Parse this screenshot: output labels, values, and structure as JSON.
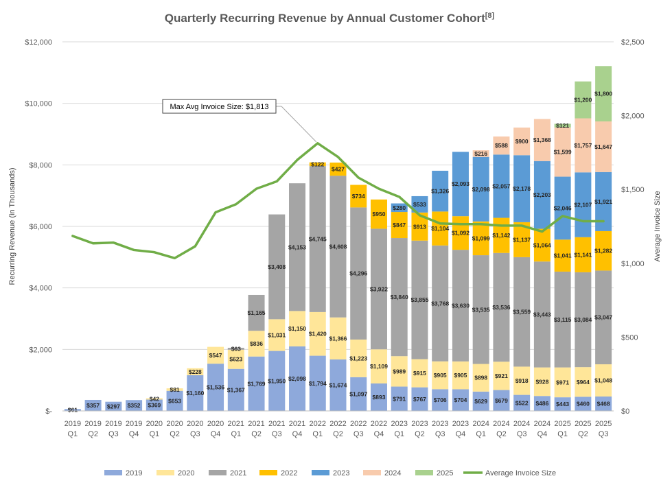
{
  "chart_data": {
    "type": "bar",
    "stacked": true,
    "title": "Quarterly Recurring Revenue by Annual Customer Cohort",
    "title_ref": "[8]",
    "ylabel": "Recurring Revenue (in Thousands)",
    "y2label": "Average Invoice Size",
    "ylim": [
      0,
      12000
    ],
    "y2lim": [
      0,
      2500
    ],
    "y_ticks": [
      "$-",
      "$2,000",
      "$4,000",
      "$6,000",
      "$8,000",
      "$10,000",
      "$12,000"
    ],
    "y2_ticks": [
      "$0",
      "$500",
      "$1,000",
      "$1,500",
      "$2,000",
      "$2,500"
    ],
    "grid": true,
    "legend_position": "bottom",
    "categories": [
      [
        "2019",
        "Q1"
      ],
      [
        "2019",
        "Q2"
      ],
      [
        "2019",
        "Q3"
      ],
      [
        "2019",
        "Q4"
      ],
      [
        "2020",
        "Q1"
      ],
      [
        "2020",
        "Q2"
      ],
      [
        "2020",
        "Q3"
      ],
      [
        "2020",
        "Q4"
      ],
      [
        "2021",
        "Q1"
      ],
      [
        "2021",
        "Q2"
      ],
      [
        "2021",
        "Q3"
      ],
      [
        "2021",
        "Q4"
      ],
      [
        "2022",
        "Q1"
      ],
      [
        "2022",
        "Q2"
      ],
      [
        "2022",
        "Q3"
      ],
      [
        "2022",
        "Q4"
      ],
      [
        "2023",
        "Q1"
      ],
      [
        "2023",
        "Q2"
      ],
      [
        "2023",
        "Q3"
      ],
      [
        "2023",
        "Q4"
      ],
      [
        "2024",
        "Q1"
      ],
      [
        "2024",
        "Q2"
      ],
      [
        "2024",
        "Q3"
      ],
      [
        "2024",
        "Q4"
      ],
      [
        "2025",
        "Q1"
      ],
      [
        "2025",
        "Q2"
      ],
      [
        "2025",
        "Q3"
      ]
    ],
    "series": [
      {
        "name": "2019",
        "color": "#8EA9DB",
        "values": [
          61,
          357,
          297,
          352,
          369,
          653,
          1160,
          1536,
          1367,
          1769,
          1950,
          2098,
          1794,
          1674,
          1097,
          893,
          791,
          767,
          706,
          704,
          629,
          679,
          522,
          486,
          443,
          460,
          468
        ],
        "labels": [
          "$61",
          "$357",
          "$297",
          "$352",
          "$369",
          "$653",
          "$1,160",
          "$1,536",
          "$1,367",
          "$1,769",
          "$1,950",
          "$2,098",
          "$1,794",
          "$1,674",
          "$1,097",
          "$893",
          "$791",
          "$767",
          "$706",
          "$704",
          "$629",
          "$679",
          "$522",
          "$486",
          "$443",
          "$460",
          "$468"
        ]
      },
      {
        "name": "2020",
        "color": "#FFE699",
        "values": [
          0,
          0,
          0,
          0,
          42,
          81,
          228,
          547,
          623,
          836,
          1031,
          1150,
          1420,
          1366,
          1223,
          1109,
          989,
          915,
          905,
          905,
          898,
          921,
          918,
          928,
          971,
          964,
          1048
        ],
        "labels": [
          "",
          "",
          "",
          "",
          "$42",
          "$81",
          "$228",
          "$547",
          "$623",
          "$836",
          "$1,031",
          "$1,150",
          "$1,420",
          "$1,366",
          "$1,223",
          "$1,109",
          "$989",
          "$915",
          "$905",
          "$905",
          "$898",
          "$921",
          "$918",
          "$928",
          "$971",
          "$964",
          "$1,048"
        ]
      },
      {
        "name": "2021",
        "color": "#A5A5A5",
        "values": [
          0,
          0,
          0,
          0,
          0,
          0,
          0,
          0,
          63,
          1165,
          3408,
          4153,
          4745,
          4608,
          4296,
          3922,
          3840,
          3855,
          3768,
          3630,
          3535,
          3536,
          3559,
          3443,
          3115,
          3084,
          3047
        ],
        "labels": [
          "",
          "",
          "",
          "",
          "",
          "",
          "",
          "",
          "$63",
          "$1,165",
          "$3,408",
          "$4,153",
          "$4,745",
          "$4,608",
          "$4,296",
          "$3,922",
          "$3,840",
          "$3,855",
          "$3,768",
          "$3,630",
          "$3,535",
          "$3,536",
          "$3,559",
          "$3,443",
          "$3,115",
          "$3,084",
          "$3,047"
        ]
      },
      {
        "name": "2022",
        "color": "#FFC000",
        "values": [
          0,
          0,
          0,
          0,
          0,
          0,
          0,
          0,
          0,
          0,
          0,
          0,
          122,
          427,
          734,
          950,
          847,
          913,
          1104,
          1092,
          1099,
          1142,
          1137,
          1064,
          1041,
          1141,
          1282
        ],
        "labels": [
          "",
          "",
          "",
          "",
          "",
          "",
          "",
          "",
          "",
          "",
          "",
          "",
          "$122",
          "$427",
          "$734",
          "$950",
          "$847",
          "$913",
          "$1,104",
          "$1,092",
          "$1,099",
          "$1,142",
          "$1,137",
          "$1,064",
          "$1,041",
          "$1,141",
          "$1,282"
        ]
      },
      {
        "name": "2023",
        "color": "#5B9BD5",
        "values": [
          0,
          0,
          0,
          0,
          0,
          0,
          0,
          0,
          0,
          0,
          0,
          0,
          0,
          0,
          0,
          0,
          280,
          533,
          1326,
          2093,
          2098,
          2057,
          2178,
          2203,
          2046,
          2107,
          1921
        ],
        "labels": [
          "",
          "",
          "",
          "",
          "",
          "",
          "",
          "",
          "",
          "",
          "",
          "",
          "",
          "",
          "",
          "",
          "$280",
          "$533",
          "$1,326",
          "$2,093",
          "$2,098",
          "$2,057",
          "$2,178",
          "$2,203",
          "$2,046",
          "$2,107",
          "$1,921"
        ]
      },
      {
        "name": "2024",
        "color": "#F8CBAD",
        "values": [
          0,
          0,
          0,
          0,
          0,
          0,
          0,
          0,
          0,
          0,
          0,
          0,
          0,
          0,
          0,
          0,
          0,
          0,
          0,
          0,
          216,
          588,
          900,
          1368,
          1599,
          1757,
          1647
        ],
        "labels": [
          "",
          "",
          "",
          "",
          "",
          "",
          "",
          "",
          "",
          "",
          "",
          "",
          "",
          "",
          "",
          "",
          "",
          "",
          "",
          "",
          "$216",
          "$588",
          "$900",
          "$1,368",
          "$1,599",
          "$1,757",
          "$1,647"
        ]
      },
      {
        "name": "2025",
        "color": "#A9D18E",
        "values": [
          0,
          0,
          0,
          0,
          0,
          0,
          0,
          0,
          0,
          0,
          0,
          0,
          0,
          0,
          0,
          0,
          0,
          0,
          0,
          0,
          0,
          0,
          0,
          0,
          121,
          1200,
          1800
        ],
        "labels": [
          "",
          "",
          "",
          "",
          "",
          "",
          "",
          "",
          "",
          "",
          "",
          "",
          "",
          "",
          "",
          "",
          "",
          "",
          "",
          "",
          "",
          "",
          "",
          "",
          "$121",
          "$1,200",
          "$1,800"
        ]
      }
    ],
    "line_series": {
      "name": "Average Invoice Size",
      "color": "#70AD47",
      "axis": "secondary",
      "values": [
        1185,
        1135,
        1140,
        1090,
        1075,
        1035,
        1115,
        1345,
        1400,
        1505,
        1555,
        1700,
        1813,
        1720,
        1580,
        1505,
        1450,
        1325,
        1270,
        1265,
        1265,
        1255,
        1255,
        1215,
        1320,
        1285,
        1285
      ]
    },
    "annotation": {
      "text": "Max Avg Invoice Size: $1,813",
      "target_index": 12
    }
  }
}
